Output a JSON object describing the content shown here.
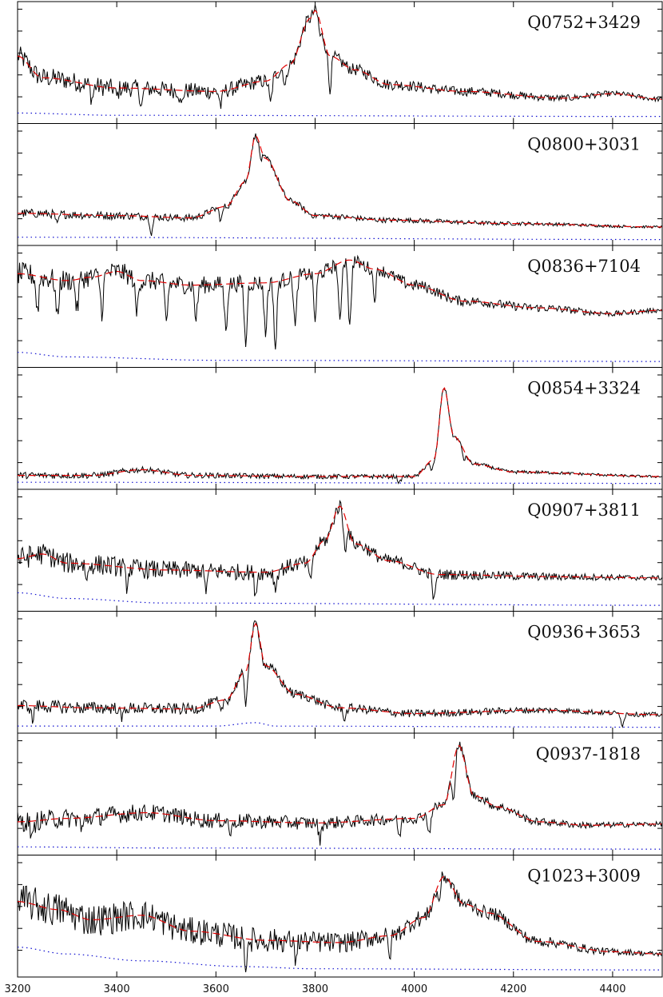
{
  "chart_data": {
    "type": "line",
    "layout": "vertically stacked panels sharing one x axis",
    "x_axis": {
      "range": [
        3200,
        4500
      ],
      "ticks": [
        3200,
        3400,
        3600,
        3800,
        4000,
        4200,
        4400
      ],
      "tick_labels": [
        "3200",
        "3400",
        "3600",
        "3800",
        "4000",
        "4200",
        "4400"
      ],
      "label": ""
    },
    "y_axis": {
      "tick_labels_shown": false,
      "range": [
        0,
        1.0
      ]
    },
    "legend": "none",
    "grid": false,
    "line_styles": {
      "spectrum": {
        "color": "#000000",
        "style": "solid"
      },
      "continuum_fit": {
        "color": "#e00000",
        "style": "dashed"
      },
      "noise": {
        "color": "#1010d0",
        "style": "dotted"
      }
    },
    "panels": [
      {
        "label": "Q0752+3429",
        "continuum": [
          [
            3200,
            0.55
          ],
          [
            3250,
            0.36
          ],
          [
            3400,
            0.27
          ],
          [
            3600,
            0.24
          ],
          [
            3700,
            0.33
          ],
          [
            3750,
            0.48
          ],
          [
            3790,
            0.88
          ],
          [
            3800,
            0.95
          ],
          [
            3830,
            0.55
          ],
          [
            3880,
            0.43
          ],
          [
            3950,
            0.3
          ],
          [
            4100,
            0.24
          ],
          [
            4300,
            0.18
          ],
          [
            4400,
            0.22
          ],
          [
            4500,
            0.17
          ]
        ],
        "noise": [
          [
            3200,
            0.05
          ],
          [
            3400,
            0.03
          ],
          [
            4500,
            0.02
          ]
        ],
        "absorptions": [
          [
            3350,
            0.12
          ],
          [
            3400,
            0.08
          ],
          [
            3450,
            0.15
          ],
          [
            3530,
            0.14
          ],
          [
            3610,
            0.13
          ],
          [
            3710,
            0.22
          ],
          [
            3740,
            0.18
          ],
          [
            3810,
            0.12
          ],
          [
            3830,
            0.28
          ]
        ],
        "noise_amp": [
          0.09,
          0.02
        ]
      },
      {
        "label": "Q0800+3031",
        "continuum": [
          [
            3200,
            0.24
          ],
          [
            3400,
            0.22
          ],
          [
            3550,
            0.2
          ],
          [
            3620,
            0.3
          ],
          [
            3660,
            0.52
          ],
          [
            3680,
            0.92
          ],
          [
            3700,
            0.72
          ],
          [
            3750,
            0.35
          ],
          [
            3800,
            0.22
          ],
          [
            3950,
            0.18
          ],
          [
            4200,
            0.15
          ],
          [
            4500,
            0.12
          ]
        ],
        "noise": [
          [
            3200,
            0.03
          ],
          [
            4500,
            0.01
          ]
        ],
        "absorptions": [
          [
            3280,
            0.1
          ],
          [
            3470,
            0.14
          ],
          [
            3610,
            0.12
          ],
          [
            3690,
            0.1
          ]
        ],
        "noise_amp": [
          0.04,
          0.01
        ]
      },
      {
        "label": "Q0836+7104",
        "continuum": [
          [
            3200,
            0.78
          ],
          [
            3300,
            0.72
          ],
          [
            3350,
            0.75
          ],
          [
            3400,
            0.8
          ],
          [
            3450,
            0.72
          ],
          [
            3550,
            0.68
          ],
          [
            3700,
            0.7
          ],
          [
            3800,
            0.78
          ],
          [
            3870,
            0.9
          ],
          [
            3920,
            0.82
          ],
          [
            4000,
            0.68
          ],
          [
            4100,
            0.54
          ],
          [
            4250,
            0.48
          ],
          [
            4400,
            0.43
          ],
          [
            4500,
            0.46
          ]
        ],
        "noise": [
          [
            3200,
            0.09
          ],
          [
            3300,
            0.05
          ],
          [
            3600,
            0.02
          ],
          [
            4500,
            0.01
          ]
        ],
        "absorptions": [
          [
            3240,
            0.3
          ],
          [
            3280,
            0.35
          ],
          [
            3320,
            0.28
          ],
          [
            3370,
            0.32
          ],
          [
            3440,
            0.3
          ],
          [
            3500,
            0.34
          ],
          [
            3560,
            0.3
          ],
          [
            3620,
            0.4
          ],
          [
            3660,
            0.55
          ],
          [
            3700,
            0.45
          ],
          [
            3720,
            0.6
          ],
          [
            3760,
            0.45
          ],
          [
            3800,
            0.4
          ],
          [
            3850,
            0.55
          ],
          [
            3870,
            0.6
          ],
          [
            3920,
            0.25
          ]
        ],
        "noise_amp": [
          0.1,
          0.02
        ]
      },
      {
        "label": "Q0854+3324",
        "continuum": [
          [
            3200,
            0.08
          ],
          [
            3350,
            0.08
          ],
          [
            3450,
            0.13
          ],
          [
            3550,
            0.08
          ],
          [
            3800,
            0.07
          ],
          [
            4000,
            0.07
          ],
          [
            4040,
            0.22
          ],
          [
            4060,
            0.85
          ],
          [
            4080,
            0.42
          ],
          [
            4120,
            0.18
          ],
          [
            4200,
            0.11
          ],
          [
            4500,
            0.07
          ]
        ],
        "noise": [
          [
            3200,
            0.02
          ],
          [
            4500,
            0.01
          ]
        ],
        "absorptions": [
          [
            3970,
            0.06
          ],
          [
            4035,
            0.1
          ],
          [
            4100,
            0.08
          ]
        ],
        "noise_amp": [
          0.03,
          0.01
        ]
      },
      {
        "label": "Q0907+3811",
        "continuum": [
          [
            3200,
            0.42
          ],
          [
            3250,
            0.46
          ],
          [
            3300,
            0.38
          ],
          [
            3500,
            0.32
          ],
          [
            3700,
            0.3
          ],
          [
            3780,
            0.38
          ],
          [
            3820,
            0.58
          ],
          [
            3850,
            0.88
          ],
          [
            3880,
            0.55
          ],
          [
            3950,
            0.4
          ],
          [
            4050,
            0.28
          ],
          [
            4300,
            0.26
          ],
          [
            4500,
            0.25
          ]
        ],
        "noise": [
          [
            3200,
            0.12
          ],
          [
            3300,
            0.07
          ],
          [
            3500,
            0.03
          ],
          [
            4500,
            0.01
          ]
        ],
        "absorptions": [
          [
            3340,
            0.14
          ],
          [
            3420,
            0.15
          ],
          [
            3580,
            0.16
          ],
          [
            3680,
            0.18
          ],
          [
            3720,
            0.16
          ],
          [
            3790,
            0.2
          ],
          [
            3860,
            0.3
          ],
          [
            4040,
            0.24
          ]
        ],
        "noise_amp": [
          0.1,
          0.02
        ]
      },
      {
        "label": "Q0936+3653",
        "continuum": [
          [
            3200,
            0.2
          ],
          [
            3350,
            0.18
          ],
          [
            3550,
            0.17
          ],
          [
            3620,
            0.25
          ],
          [
            3660,
            0.5
          ],
          [
            3680,
            0.92
          ],
          [
            3700,
            0.55
          ],
          [
            3760,
            0.3
          ],
          [
            3850,
            0.18
          ],
          [
            4000,
            0.13
          ],
          [
            4250,
            0.16
          ],
          [
            4500,
            0.12
          ]
        ],
        "noise": [
          [
            3200,
            0.02
          ],
          [
            3600,
            0.02
          ],
          [
            3680,
            0.05
          ],
          [
            3720,
            0.02
          ],
          [
            4500,
            0.01
          ]
        ],
        "absorptions": [
          [
            3230,
            0.12
          ],
          [
            3410,
            0.1
          ],
          [
            3610,
            0.12
          ],
          [
            3660,
            0.28
          ],
          [
            3860,
            0.1
          ],
          [
            4420,
            0.1
          ]
        ],
        "noise_amp": [
          0.06,
          0.02
        ]
      },
      {
        "label": "Q0937-1818",
        "continuum": [
          [
            3200,
            0.25
          ],
          [
            3300,
            0.28
          ],
          [
            3460,
            0.33
          ],
          [
            3600,
            0.26
          ],
          [
            3800,
            0.24
          ],
          [
            4000,
            0.28
          ],
          [
            4060,
            0.4
          ],
          [
            4090,
            0.92
          ],
          [
            4120,
            0.48
          ],
          [
            4170,
            0.38
          ],
          [
            4250,
            0.25
          ],
          [
            4350,
            0.22
          ],
          [
            4500,
            0.23
          ]
        ],
        "noise": [
          [
            3200,
            0.03
          ],
          [
            3500,
            0.02
          ],
          [
            4500,
            0.01
          ]
        ],
        "absorptions": [
          [
            3230,
            0.18
          ],
          [
            3330,
            0.12
          ],
          [
            3630,
            0.12
          ],
          [
            3810,
            0.15
          ],
          [
            3970,
            0.16
          ],
          [
            4030,
            0.2
          ],
          [
            4080,
            0.32
          ]
        ],
        "noise_amp": [
          0.09,
          0.02
        ]
      },
      {
        "label": "Q1023+3009",
        "continuum": [
          [
            3200,
            0.62
          ],
          [
            3280,
            0.55
          ],
          [
            3350,
            0.46
          ],
          [
            3450,
            0.5
          ],
          [
            3550,
            0.36
          ],
          [
            3700,
            0.28
          ],
          [
            3850,
            0.26
          ],
          [
            3950,
            0.32
          ],
          [
            4020,
            0.48
          ],
          [
            4060,
            0.84
          ],
          [
            4100,
            0.6
          ],
          [
            4150,
            0.52
          ],
          [
            4250,
            0.27
          ],
          [
            4400,
            0.18
          ],
          [
            4500,
            0.16
          ]
        ],
        "noise": [
          [
            3200,
            0.22
          ],
          [
            3300,
            0.16
          ],
          [
            3450,
            0.1
          ],
          [
            3650,
            0.05
          ],
          [
            3800,
            0.03
          ],
          [
            4500,
            0.02
          ]
        ],
        "absorptions": [
          [
            3660,
            0.22
          ],
          [
            3760,
            0.14
          ],
          [
            3950,
            0.18
          ],
          [
            4050,
            0.15
          ]
        ],
        "noise_amp": [
          0.16,
          0.02
        ]
      }
    ]
  }
}
